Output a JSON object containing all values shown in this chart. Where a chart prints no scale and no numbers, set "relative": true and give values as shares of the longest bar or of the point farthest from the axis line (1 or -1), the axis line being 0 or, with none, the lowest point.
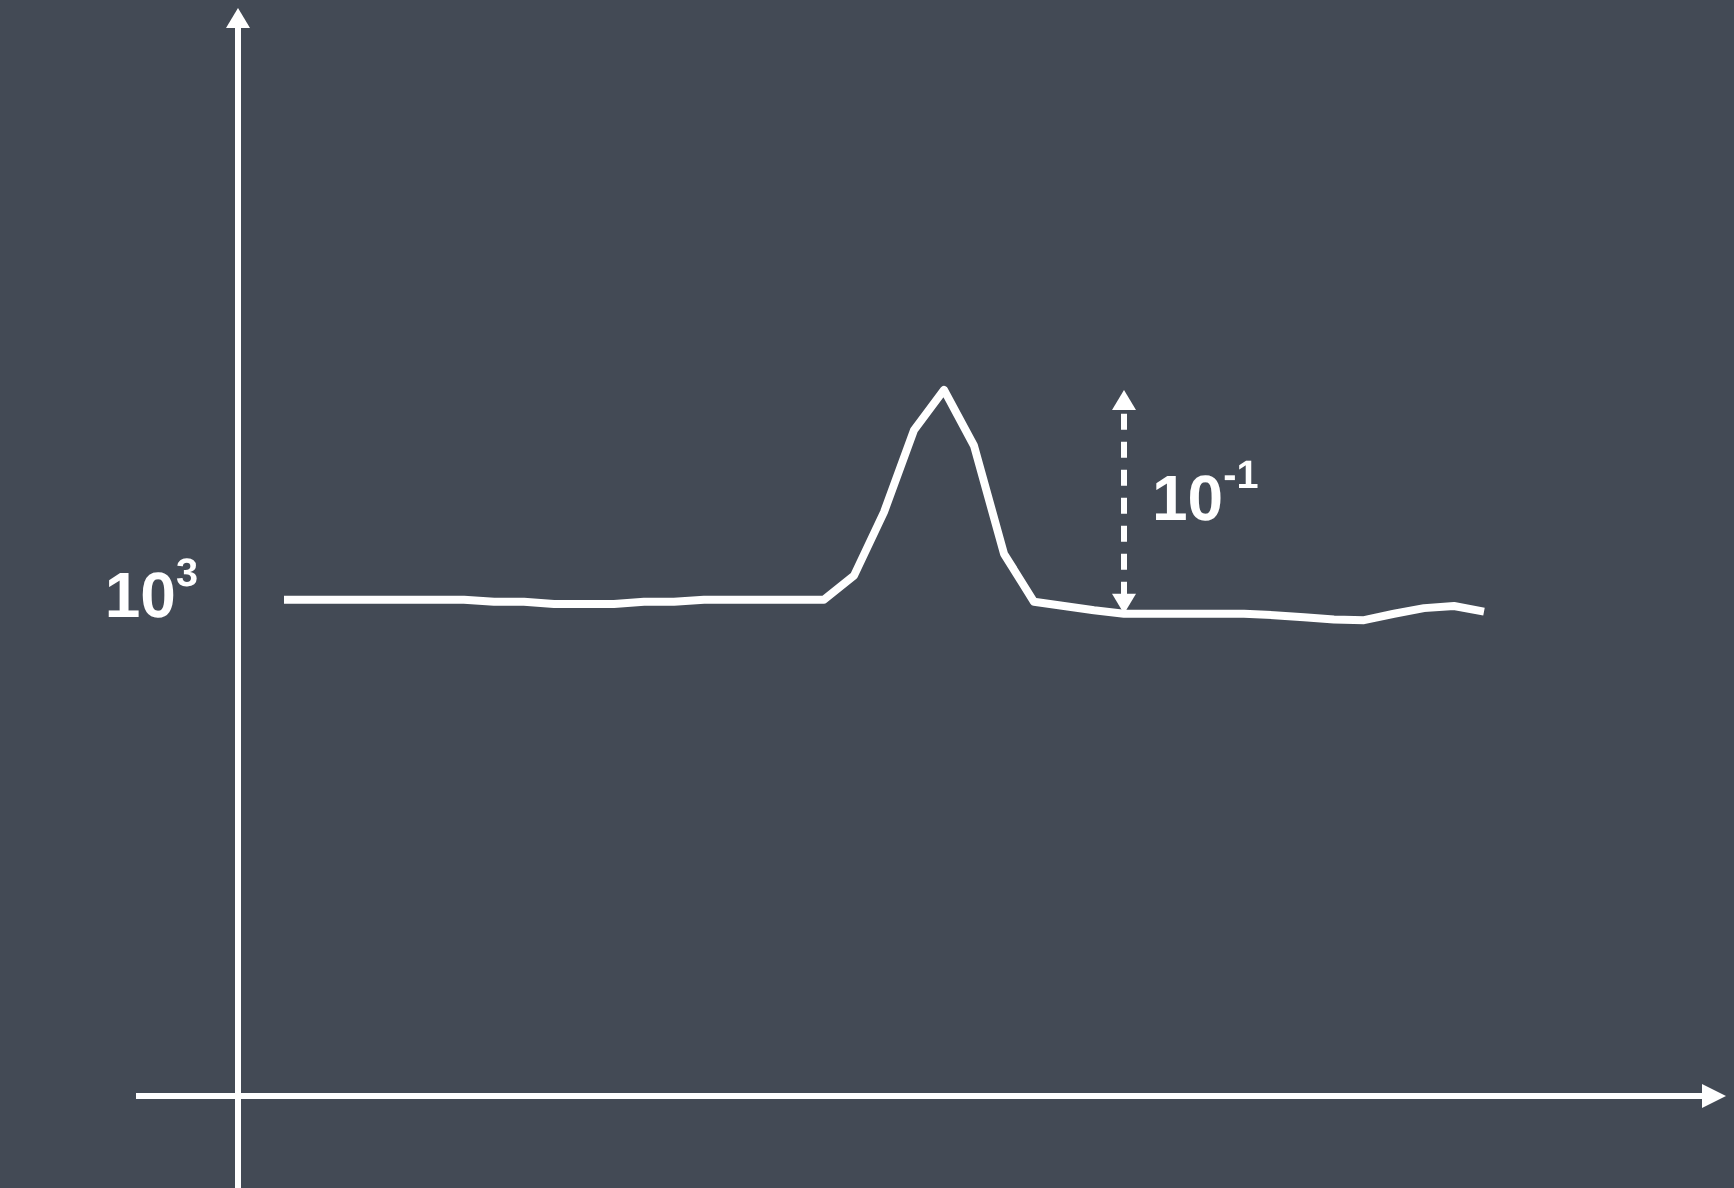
{
  "chart_data": {
    "type": "line",
    "relative": true,
    "ylabel": "10$^{3}$",
    "annotations": [
      "10$^{-1}$"
    ],
    "categories": [
      null,
      null,
      null,
      null,
      null,
      null,
      null,
      null,
      null,
      null,
      null,
      null,
      null,
      null,
      null,
      null,
      null,
      null,
      null,
      null,
      null,
      null,
      null,
      null,
      null,
      null,
      null,
      null,
      null,
      null,
      null,
      null,
      null,
      null,
      null,
      null,
      null,
      null,
      null,
      null,
      null
    ],
    "series": [
      {
        "color": "#ffffff",
        "values": [
          0.703,
          0.703,
          0.703,
          0.703,
          0.703,
          0.703,
          0.703,
          0.7,
          0.7,
          0.697,
          0.697,
          0.697,
          0.7,
          0.7,
          0.703,
          0.703,
          0.703,
          0.703,
          0.703,
          0.737,
          0.827,
          0.943,
          1,
          0.921,
          0.768,
          0.7,
          0.694,
          0.688,
          0.683,
          0.683,
          0.683,
          0.683,
          0.683,
          0.681,
          0.678,
          0.675,
          0.674,
          0.683,
          0.691,
          0.694,
          0.686
        ]
      }
    ],
    "legend": false,
    "marker": "none",
    "line_style": "solid"
  }
}
